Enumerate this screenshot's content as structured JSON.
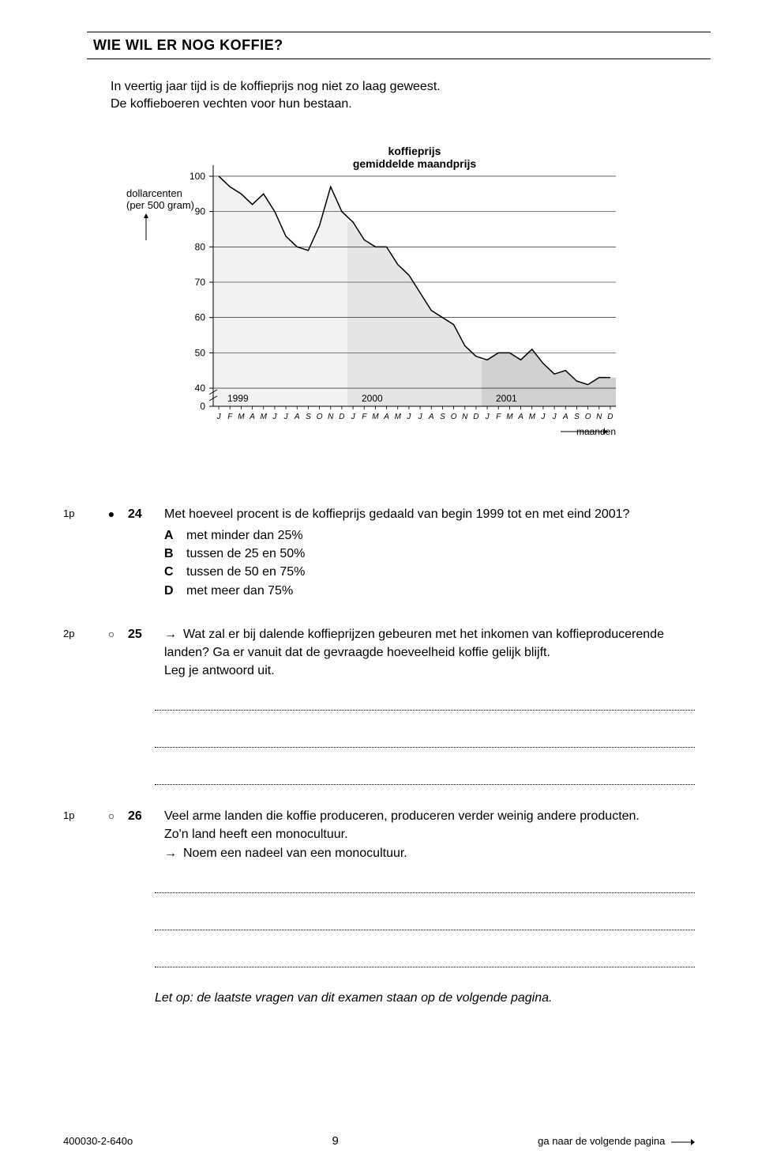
{
  "title": "WIE WIL ER NOG KOFFIE?",
  "intro_line1": "In veertig jaar tijd is de koffieprijs nog niet zo laag geweest.",
  "intro_line2": "De koffieboeren vechten voor hun bestaan.",
  "chart": {
    "type": "area-line",
    "y_axis_label_1": "dollarcenten",
    "y_axis_label_2": "(per 500 gram)",
    "chart_title_1": "koffieprijs",
    "chart_title_2": "gemiddelde maandprijs",
    "x_axis_label": "maanden",
    "years": [
      "1999",
      "2000",
      "2001"
    ],
    "months": [
      "J",
      "F",
      "M",
      "A",
      "M",
      "J",
      "J",
      "A",
      "S",
      "O",
      "N",
      "D"
    ],
    "y_ticks": [
      0,
      40,
      50,
      60,
      70,
      80,
      90,
      100
    ],
    "y_min": 0,
    "y_max": 102,
    "y_break_low": 2,
    "y_break_high": 38,
    "values": [
      100,
      97,
      95,
      92,
      95,
      90,
      83,
      80,
      79,
      86,
      97,
      90,
      87,
      82,
      80,
      80,
      75,
      72,
      67,
      62,
      60,
      58,
      52,
      49,
      48,
      50,
      50,
      48,
      51,
      47,
      44,
      45,
      42,
      41,
      43,
      43
    ],
    "colors": {
      "bg_year1": "#f2f2f2",
      "bg_year2": "#e6e6e6",
      "bg_year3": "#d1d1d1",
      "line": "#000000",
      "axis": "#000000",
      "grid": "#000000",
      "text": "#000000",
      "page_bg": "#ffffff"
    },
    "font_size_axis": 12,
    "font_size_title": 14,
    "line_width": 1.5
  },
  "q24": {
    "points": "1p",
    "marker": "●",
    "num": "24",
    "text": "Met hoeveel procent is de koffieprijs gedaald van begin 1999 tot en met eind 2001?",
    "optA": "met minder dan 25%",
    "optB": "tussen de 25 en 50%",
    "optC": "tussen de 50 en 75%",
    "optD": "met meer dan 75%"
  },
  "q25": {
    "points": "2p",
    "marker": "○",
    "num": "25",
    "arrow": "→",
    "line1": "Wat zal er bij dalende koffieprijzen gebeuren met het inkomen van koffieproducerende",
    "line2": "landen? Ga er vanuit dat de gevraagde hoeveelheid koffie gelijk blijft.",
    "line3": "Leg je antwoord uit."
  },
  "q26": {
    "points": "1p",
    "marker": "○",
    "num": "26",
    "line1": "Veel arme landen die koffie produceren, produceren verder weinig andere producten.",
    "line2": "Zo'n land heeft een monocultuur.",
    "arrow": "→",
    "line3": "Noem een nadeel van een monocultuur."
  },
  "note": "Let op: de laatste vragen van dit examen staan op de volgende pagina.",
  "footer": {
    "left": "400030-2-640o",
    "mid": "9",
    "right": "ga naar de volgende pagina"
  }
}
